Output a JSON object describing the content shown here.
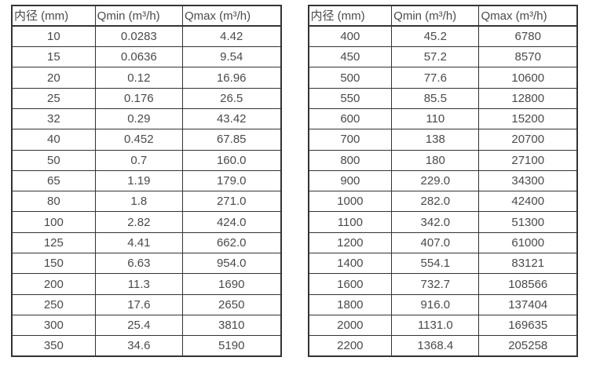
{
  "colors": {
    "border": "#333333",
    "text": "#4a4a4a",
    "background": "#ffffff"
  },
  "tables": [
    {
      "title": "flow-rate-table-small-diameters",
      "headers": [
        "内径 (mm)",
        "Qmin (m³/h)",
        "Qmax (m³/h)"
      ],
      "rows": [
        [
          "10",
          "0.0283",
          "4.42"
        ],
        [
          "15",
          "0.0636",
          "9.54"
        ],
        [
          "20",
          "0.12",
          "16.96"
        ],
        [
          "25",
          "0.176",
          "26.5"
        ],
        [
          "32",
          "0.29",
          "43.42"
        ],
        [
          "40",
          "0.452",
          "67.85"
        ],
        [
          "50",
          "0.7",
          "160.0"
        ],
        [
          "65",
          "1.19",
          "179.0"
        ],
        [
          "80",
          "1.8",
          "271.0"
        ],
        [
          "100",
          "2.82",
          "424.0"
        ],
        [
          "125",
          "4.41",
          "662.0"
        ],
        [
          "150",
          "6.63",
          "954.0"
        ],
        [
          "200",
          "11.3",
          "1690"
        ],
        [
          "250",
          "17.6",
          "2650"
        ],
        [
          "300",
          "25.4",
          "3810"
        ],
        [
          "350",
          "34.6",
          "5190"
        ]
      ]
    },
    {
      "title": "flow-rate-table-large-diameters",
      "headers": [
        "内径 (mm)",
        "Qmin (m³/h)",
        "Qmax (m³/h)"
      ],
      "rows": [
        [
          "400",
          "45.2",
          "6780"
        ],
        [
          "450",
          "57.2",
          "8570"
        ],
        [
          "500",
          "77.6",
          "10600"
        ],
        [
          "550",
          "85.5",
          "12800"
        ],
        [
          "600",
          "110",
          "15200"
        ],
        [
          "700",
          "138",
          "20700"
        ],
        [
          "800",
          "180",
          "27100"
        ],
        [
          "900",
          "229.0",
          "34300"
        ],
        [
          "1000",
          "282.0",
          "42400"
        ],
        [
          "1100",
          "342.0",
          "51300"
        ],
        [
          "1200",
          "407.0",
          "61000"
        ],
        [
          "1400",
          "554.1",
          "83121"
        ],
        [
          "1600",
          "732.7",
          "108566"
        ],
        [
          "1800",
          "916.0",
          "137404"
        ],
        [
          "2000",
          "1131.0",
          "169635"
        ],
        [
          "2200",
          "1368.4",
          "205258"
        ]
      ]
    }
  ]
}
